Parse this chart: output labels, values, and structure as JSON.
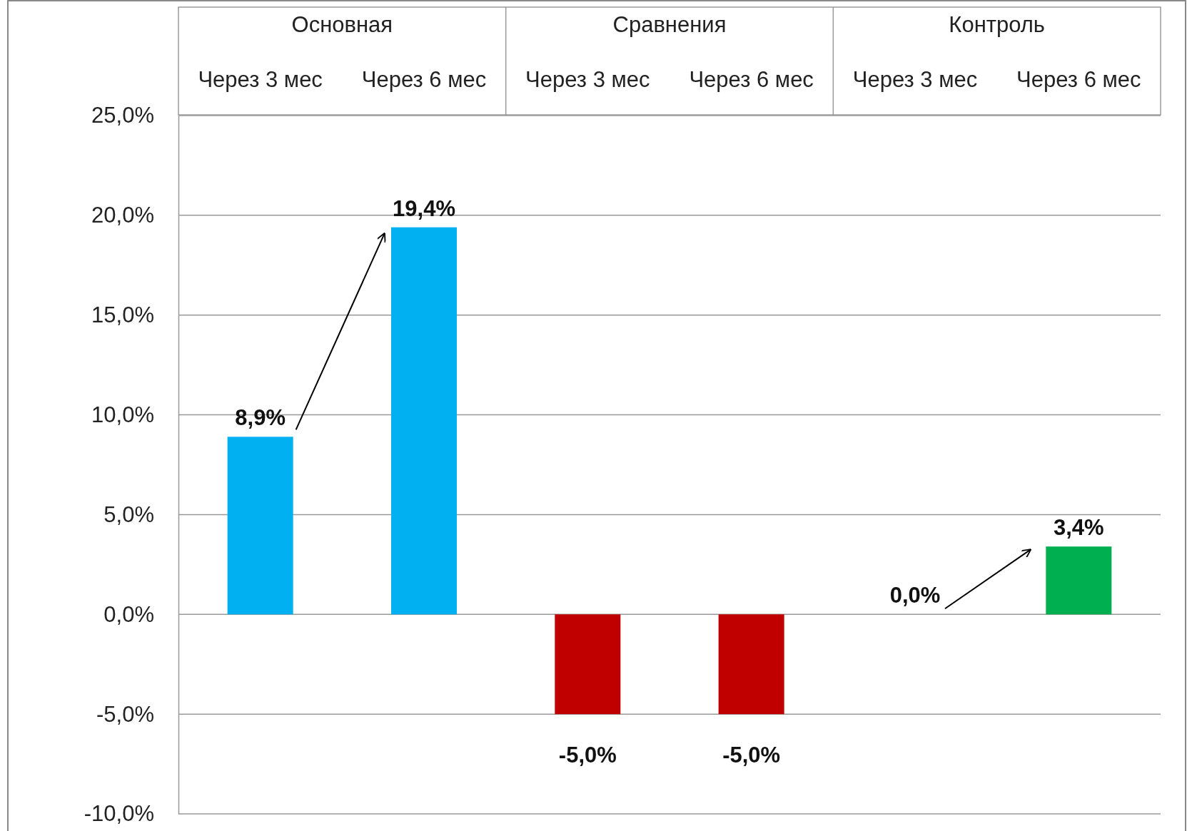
{
  "chart_data": {
    "type": "bar",
    "categories": [
      "Через 3 мес",
      "Через 6 мес",
      "Через 3 мес",
      "Через 6 мес",
      "Через 3 мес",
      "Через 6 мес"
    ],
    "values": [
      8.9,
      19.4,
      -5.0,
      -5.0,
      0.0,
      3.4
    ],
    "colors": [
      "#00b0f0",
      "#00b0f0",
      "#c00000",
      "#c00000",
      "#00b050",
      "#00b050"
    ],
    "value_labels": [
      "8,9%",
      "19,4%",
      "-5,0%",
      "-5,0%",
      "0,0%",
      "3,4%"
    ],
    "annotations": [
      "Основная",
      "Сравнения",
      "Контроль"
    ],
    "ylim": [
      -10,
      25
    ],
    "yticks": [
      {
        "value": -10,
        "label": "-10,0%"
      },
      {
        "value": -5,
        "label": "-5,0%"
      },
      {
        "value": 0,
        "label": "0,0%"
      },
      {
        "value": 5,
        "label": "5,0%"
      },
      {
        "value": 10,
        "label": "10,0%"
      },
      {
        "value": 15,
        "label": "15,0%"
      },
      {
        "value": 20,
        "label": "20,0%"
      },
      {
        "value": 25,
        "label": "25,0%"
      }
    ],
    "grid": "y"
  }
}
